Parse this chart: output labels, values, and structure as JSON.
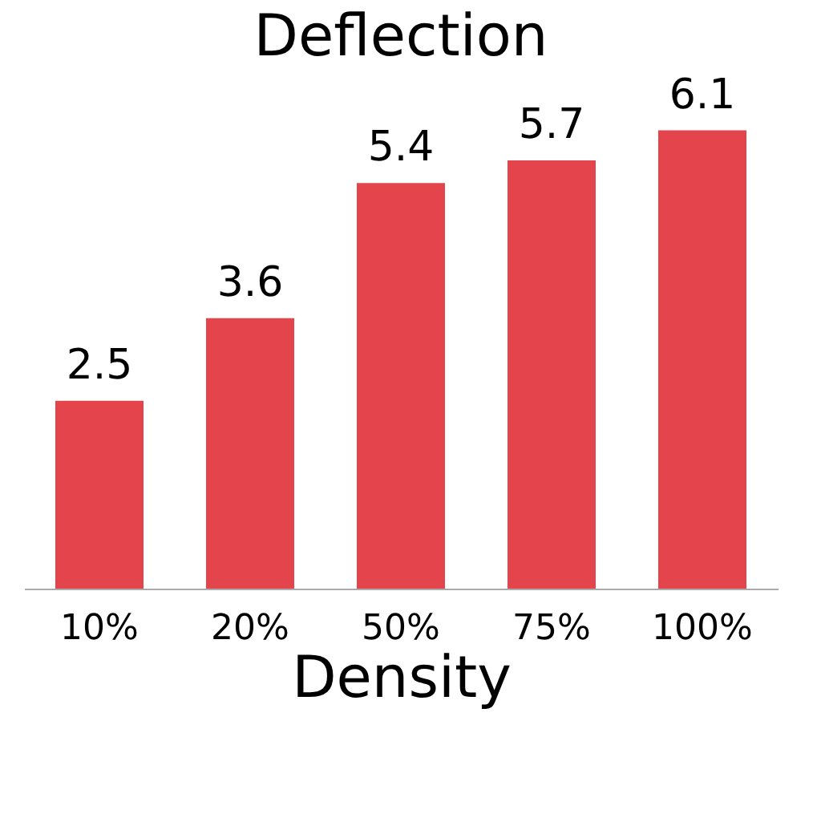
{
  "chart_data": {
    "type": "bar",
    "title": "Deflection",
    "xlabel": "Density",
    "categories": [
      "10%",
      "20%",
      "50%",
      "75%",
      "100%"
    ],
    "values": [
      2.5,
      3.6,
      5.4,
      5.7,
      6.1
    ],
    "color": "#e4444c",
    "data_labels": true,
    "grid": false
  }
}
